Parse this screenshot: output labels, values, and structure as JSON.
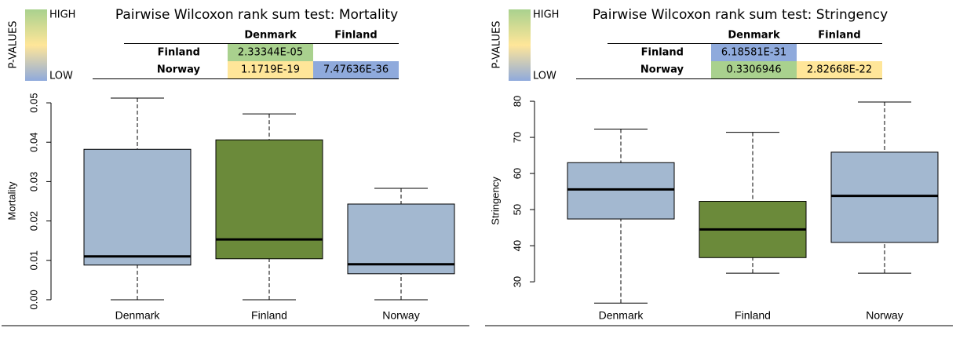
{
  "chart_data": [
    {
      "type": "box",
      "title": "Pairwise Wilcoxon rank sum test: Mortality",
      "legend": {
        "title": "P-VALUES",
        "high": "HIGH",
        "low": "LOW"
      },
      "table": {
        "columns": [
          "Denmark",
          "Finland"
        ],
        "rows": [
          {
            "label": "Finland",
            "cells": [
              "2.33344E-05",
              null
            ],
            "colors": [
              "#a9d18e",
              null
            ]
          },
          {
            "label": "Norway",
            "cells": [
              "1.1719E-19",
              "7.47636E-36"
            ],
            "colors": [
              "#ffe699",
              "#8faadc"
            ]
          }
        ]
      },
      "ylabel": "Mortality",
      "categories": [
        "Denmark",
        "Finland",
        "Norway"
      ],
      "boxes": [
        {
          "min": 0.0,
          "q1": 0.0088,
          "median": 0.011,
          "q3": 0.0382,
          "max": 0.0512
        },
        {
          "min": 0.0,
          "q1": 0.0104,
          "median": 0.0153,
          "q3": 0.0406,
          "max": 0.0472
        },
        {
          "min": 0.0,
          "q1": 0.0066,
          "median": 0.009,
          "q3": 0.0243,
          "max": 0.0283
        }
      ],
      "colors": [
        "#a3b8d0",
        "#6b8a3a",
        "#a3b8d0"
      ],
      "ylim": [
        -0.0026,
        0.0526
      ],
      "yticks": [
        {
          "value": 0,
          "label": "0.00"
        },
        0.01,
        0.02,
        0.03,
        0.04,
        0.05
      ]
    },
    {
      "type": "box",
      "title": "Pairwise Wilcoxon rank sum test: Stringency",
      "legend": {
        "title": "P-VALUES",
        "high": "HIGH",
        "low": "LOW"
      },
      "table": {
        "columns": [
          "Denmark",
          "Finland"
        ],
        "rows": [
          {
            "label": "Finland",
            "cells": [
              "6.18581E-31",
              null
            ],
            "colors": [
              "#8faadc",
              null
            ]
          },
          {
            "label": "Norway",
            "cells": [
              "0.3306946",
              "2.82668E-22"
            ],
            "colors": [
              "#a9d18e",
              "#ffe699"
            ]
          }
        ]
      },
      "ylabel": "Stringency",
      "categories": [
        "Denmark",
        "Finland",
        "Norway"
      ],
      "boxes": [
        {
          "min": 24.1,
          "q1": 47.4,
          "median": 55.6,
          "q3": 63.0,
          "max": 72.3
        },
        {
          "min": 32.4,
          "q1": 36.7,
          "median": 44.5,
          "q3": 52.3,
          "max": 71.4
        },
        {
          "min": 32.4,
          "q1": 40.9,
          "median": 53.8,
          "q3": 65.9,
          "max": 79.8
        }
      ],
      "colors": [
        "#a3b8d0",
        "#6b8a3a",
        "#a3b8d0"
      ],
      "ylim": [
        22.2,
        82.4
      ],
      "yticks": [
        30,
        40,
        50,
        60,
        70,
        80
      ]
    }
  ]
}
